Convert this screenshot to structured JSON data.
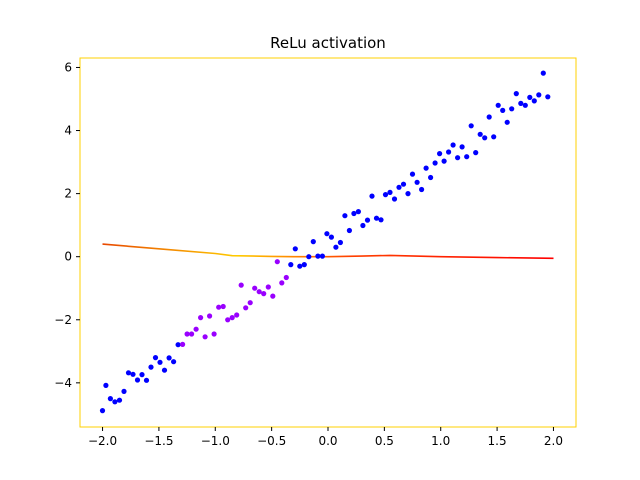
{
  "chart_data": {
    "type": "scatter",
    "title": "ReLu activation",
    "xlabel": "",
    "ylabel": "",
    "xlim": [
      -2.2,
      2.2
    ],
    "ylim": [
      -5.4,
      6.3
    ],
    "grid": false,
    "xticks": [
      -2.0,
      -1.5,
      -1.0,
      -0.5,
      0.0,
      0.5,
      1.0,
      1.5,
      2.0
    ],
    "xtick_labels": [
      "−2.0",
      "−1.5",
      "−1.0",
      "−0.5",
      "0.0",
      "0.5",
      "1.0",
      "1.5",
      "2.0"
    ],
    "yticks": [
      -4,
      -2,
      0,
      2,
      4,
      6
    ],
    "ytick_labels": [
      "−4",
      "−2",
      "0",
      "2",
      "4",
      "6"
    ],
    "colors": {
      "points": "#0000ff",
      "points_alt": "#9900ff",
      "fit_line": "#ff0000",
      "fit_line_alt": "#ffcc00",
      "frame": "#ffd200"
    },
    "series": [
      {
        "kind": "scatter",
        "points": [
          [
            -2.0,
            -4.88
          ],
          [
            -1.97,
            -4.08
          ],
          [
            -1.93,
            -4.5
          ],
          [
            -1.89,
            -4.6
          ],
          [
            -1.85,
            -4.55
          ],
          [
            -1.81,
            -4.27
          ],
          [
            -1.77,
            -3.68
          ],
          [
            -1.73,
            -3.73
          ],
          [
            -1.69,
            -3.91
          ],
          [
            -1.65,
            -3.74
          ],
          [
            -1.61,
            -3.92
          ],
          [
            -1.57,
            -3.5
          ],
          [
            -1.53,
            -3.2
          ],
          [
            -1.49,
            -3.35
          ],
          [
            -1.45,
            -3.6
          ],
          [
            -1.41,
            -3.21
          ],
          [
            -1.37,
            -3.33
          ],
          [
            -1.33,
            -2.79
          ],
          [
            -1.29,
            -2.78
          ],
          [
            -1.25,
            -2.45
          ],
          [
            -1.21,
            -2.45
          ],
          [
            -1.17,
            -2.3
          ],
          [
            -1.13,
            -1.93
          ],
          [
            -1.09,
            -2.54
          ],
          [
            -1.05,
            -1.88
          ],
          [
            -1.01,
            -2.45
          ],
          [
            -0.97,
            -1.6
          ],
          [
            -0.93,
            -1.58
          ],
          [
            -0.89,
            -2.0
          ],
          [
            -0.85,
            -1.93
          ],
          [
            -0.81,
            -1.85
          ],
          [
            -0.77,
            -0.9
          ],
          [
            -0.73,
            -1.62
          ],
          [
            -0.69,
            -1.46
          ],
          [
            -0.65,
            -1.0
          ],
          [
            -0.61,
            -1.11
          ],
          [
            -0.57,
            -1.17
          ],
          [
            -0.53,
            -0.96
          ],
          [
            -0.49,
            -1.25
          ],
          [
            -0.45,
            -0.16
          ],
          [
            -0.41,
            -0.83
          ],
          [
            -0.37,
            -0.66
          ],
          [
            -0.33,
            -0.25
          ],
          [
            -0.29,
            0.25
          ],
          [
            -0.25,
            -0.3
          ],
          [
            -0.21,
            -0.25
          ],
          [
            -0.17,
            0.0
          ],
          [
            -0.13,
            0.48
          ],
          [
            -0.09,
            0.02
          ],
          [
            -0.05,
            0.02
          ],
          [
            -0.01,
            0.73
          ],
          [
            0.03,
            0.62
          ],
          [
            0.07,
            0.3
          ],
          [
            0.11,
            0.45
          ],
          [
            0.15,
            1.3
          ],
          [
            0.19,
            0.83
          ],
          [
            0.23,
            1.37
          ],
          [
            0.27,
            1.43
          ],
          [
            0.31,
            0.99
          ],
          [
            0.35,
            1.16
          ],
          [
            0.39,
            1.92
          ],
          [
            0.43,
            1.22
          ],
          [
            0.47,
            1.17
          ],
          [
            0.51,
            1.97
          ],
          [
            0.55,
            2.04
          ],
          [
            0.59,
            1.83
          ],
          [
            0.63,
            2.2
          ],
          [
            0.67,
            2.3
          ],
          [
            0.71,
            2.0
          ],
          [
            0.75,
            2.62
          ],
          [
            0.79,
            2.36
          ],
          [
            0.83,
            2.13
          ],
          [
            0.87,
            2.81
          ],
          [
            0.91,
            2.51
          ],
          [
            0.95,
            2.97
          ],
          [
            0.99,
            3.27
          ],
          [
            1.03,
            3.03
          ],
          [
            1.07,
            3.32
          ],
          [
            1.11,
            3.54
          ],
          [
            1.15,
            3.14
          ],
          [
            1.19,
            3.48
          ],
          [
            1.23,
            3.17
          ],
          [
            1.27,
            4.15
          ],
          [
            1.31,
            3.3
          ],
          [
            1.35,
            3.88
          ],
          [
            1.39,
            3.77
          ],
          [
            1.43,
            4.43
          ],
          [
            1.47,
            3.8
          ],
          [
            1.51,
            4.8
          ],
          [
            1.55,
            4.64
          ],
          [
            1.59,
            4.26
          ],
          [
            1.63,
            4.69
          ],
          [
            1.67,
            5.17
          ],
          [
            1.71,
            4.86
          ],
          [
            1.75,
            4.8
          ],
          [
            1.79,
            5.05
          ],
          [
            1.83,
            4.94
          ],
          [
            1.87,
            5.13
          ],
          [
            1.91,
            5.82
          ],
          [
            1.95,
            5.07
          ]
        ]
      },
      {
        "kind": "line",
        "points": [
          [
            -2.0,
            0.4
          ],
          [
            -1.5,
            0.25
          ],
          [
            -1.0,
            0.1
          ],
          [
            -0.85,
            0.03
          ],
          [
            -0.5,
            0.01
          ],
          [
            -0.3,
            0.0
          ],
          [
            0.0,
            0.0
          ],
          [
            0.3,
            0.02
          ],
          [
            0.55,
            0.04
          ],
          [
            1.0,
            0.0
          ],
          [
            1.5,
            -0.03
          ],
          [
            2.0,
            -0.05
          ]
        ]
      }
    ]
  }
}
